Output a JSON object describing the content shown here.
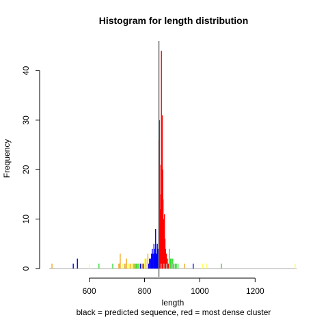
{
  "chart_data": {
    "type": "histogram",
    "title": "Histogram for length distribution",
    "xlabel": "length",
    "ylabel": "Frequency",
    "note": "black = predicted sequence, red = most dense cluster",
    "xlim": [
      455,
      1350
    ],
    "ylim": [
      0,
      46
    ],
    "x_ticks": [
      600,
      800,
      1000,
      1200
    ],
    "y_ticks": [
      0,
      10,
      20,
      30,
      40
    ],
    "predicted_sequence_length": 852,
    "series": [
      {
        "color": "#f5a623",
        "bins": [
          [
            465,
            1
          ],
          [
            707,
            1
          ],
          [
            712,
            3
          ],
          [
            728,
            1
          ],
          [
            735,
            2
          ],
          [
            748,
            1
          ],
          [
            762,
            1
          ],
          [
            792,
            1
          ],
          [
            805,
            2
          ],
          [
            812,
            3
          ],
          [
            818,
            2
          ],
          [
            822,
            1
          ],
          [
            828,
            1
          ],
          [
            945,
            1
          ]
        ]
      },
      {
        "color": "#ffff66",
        "bins": [
          [
            600,
            1
          ],
          [
            720,
            1
          ],
          [
            740,
            1
          ],
          [
            744,
            1
          ],
          [
            752,
            1
          ],
          [
            756,
            1
          ],
          [
            760,
            1
          ],
          [
            777,
            1
          ],
          [
            784,
            1
          ],
          [
            800,
            2
          ],
          [
            1010,
            1
          ],
          [
            1025,
            1
          ],
          [
            1345,
            1
          ]
        ]
      },
      {
        "color": "#33dd33",
        "bins": [
          [
            635,
            1
          ],
          [
            685,
            1
          ],
          [
            766,
            1
          ],
          [
            770,
            1
          ],
          [
            774,
            1
          ],
          [
            779,
            1
          ],
          [
            884,
            2
          ],
          [
            890,
            4
          ],
          [
            894,
            2
          ],
          [
            898,
            2
          ],
          [
            902,
            2
          ],
          [
            906,
            1
          ],
          [
            911,
            1
          ],
          [
            915,
            1
          ],
          [
            921,
            1
          ],
          [
            1078,
            1
          ]
        ]
      },
      {
        "color": "#0000ff",
        "bins": [
          [
            542,
            1
          ],
          [
            557,
            2
          ],
          [
            785,
            1
          ],
          [
            795,
            1
          ],
          [
            815,
            1
          ],
          [
            818,
            2
          ],
          [
            822,
            2
          ],
          [
            825,
            3
          ],
          [
            828,
            4
          ],
          [
            831,
            3
          ],
          [
            834,
            5
          ],
          [
            836,
            4
          ],
          [
            838,
            3
          ],
          [
            840,
            8
          ],
          [
            842,
            3
          ],
          [
            844,
            3
          ],
          [
            846,
            5
          ],
          [
            848,
            4
          ],
          [
            857,
            4
          ],
          [
            860,
            3
          ],
          [
            976,
            1
          ]
        ]
      },
      {
        "color": "#ff0000",
        "bins": [
          [
            852,
            26
          ],
          [
            854,
            30
          ],
          [
            856,
            12
          ],
          [
            858,
            15
          ],
          [
            859,
            21
          ],
          [
            861,
            44
          ],
          [
            862,
            15
          ],
          [
            864,
            31
          ],
          [
            866,
            20
          ],
          [
            867,
            14
          ],
          [
            869,
            10
          ],
          [
            871,
            8
          ],
          [
            872,
            11
          ],
          [
            874,
            6
          ],
          [
            876,
            4
          ],
          [
            878,
            3
          ],
          [
            879,
            3
          ],
          [
            881,
            2
          ],
          [
            883,
            1
          ],
          [
            886,
            1
          ]
        ]
      },
      {
        "color": "#bbbbbb",
        "bins": [
          [
            710,
            1
          ],
          [
            730,
            1
          ],
          [
            760,
            1
          ],
          [
            790,
            1
          ],
          [
            860,
            1
          ],
          [
            870,
            1
          ],
          [
            880,
            1
          ],
          [
            900,
            1
          ]
        ]
      }
    ]
  }
}
